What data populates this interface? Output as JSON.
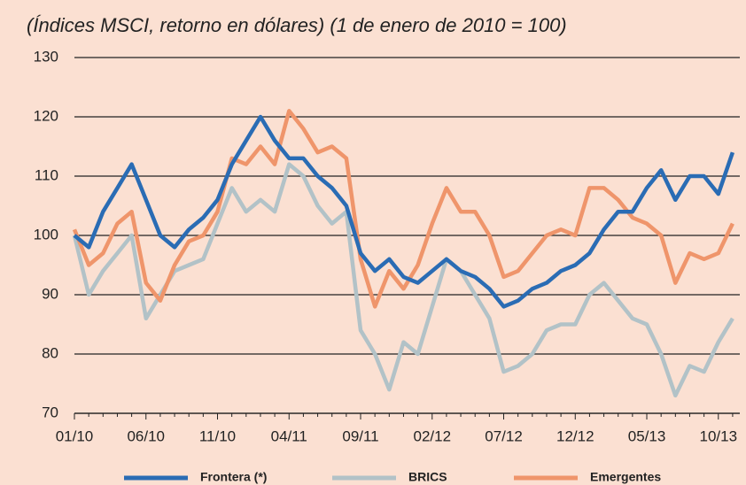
{
  "chart_data": {
    "type": "line",
    "title": "(Índices MSCI, retorno en dólares) (1 de enero de 2010 = 100)",
    "categories": [
      "01/10",
      null,
      null,
      null,
      null,
      "06/10",
      null,
      null,
      null,
      null,
      "11/10",
      null,
      null,
      null,
      null,
      "04/11",
      null,
      null,
      null,
      null,
      "09/11",
      null,
      null,
      null,
      null,
      "02/12",
      null,
      null,
      null,
      null,
      "07/12",
      null,
      null,
      null,
      null,
      "12/12",
      null,
      null,
      null,
      null,
      "05/13",
      null,
      null,
      null,
      null,
      "10/13",
      null
    ],
    "series": [
      {
        "name": "Frontera (*)",
        "color": "#2a6cb4",
        "values": [
          100,
          98,
          104,
          108,
          112,
          106,
          100,
          98,
          101,
          103,
          106,
          112,
          116,
          120,
          116,
          113,
          113,
          110,
          108,
          105,
          97,
          94,
          96,
          93,
          92,
          94,
          96,
          94,
          93,
          91,
          88,
          89,
          91,
          92,
          94,
          95,
          97,
          101,
          104,
          104,
          108,
          111,
          106,
          110,
          110,
          107,
          114
        ]
      },
      {
        "name": "BRICS",
        "color": "#b2c2c7",
        "values": [
          100,
          90,
          94,
          97,
          100,
          86,
          90,
          94,
          95,
          96,
          102,
          108,
          104,
          106,
          104,
          112,
          110,
          105,
          102,
          104,
          84,
          80,
          74,
          82,
          80,
          88,
          96,
          94,
          90,
          86,
          77,
          78,
          80,
          84,
          85,
          85,
          90,
          92,
          89,
          86,
          85,
          80,
          73,
          78,
          77,
          82,
          86
        ]
      },
      {
        "name": "Emergentes",
        "color": "#ef956b",
        "values": [
          101,
          95,
          97,
          102,
          104,
          92,
          89,
          95,
          99,
          100,
          104,
          113,
          112,
          115,
          112,
          121,
          118,
          114,
          115,
          113,
          96,
          88,
          94,
          91,
          95,
          102,
          108,
          104,
          104,
          100,
          93,
          94,
          97,
          100,
          101,
          100,
          108,
          108,
          106,
          103,
          102,
          100,
          92,
          97,
          96,
          97,
          102
        ]
      }
    ],
    "ylim": [
      70,
      130
    ],
    "yticks": [
      70,
      80,
      90,
      100,
      110,
      120,
      130
    ],
    "grid": true
  }
}
